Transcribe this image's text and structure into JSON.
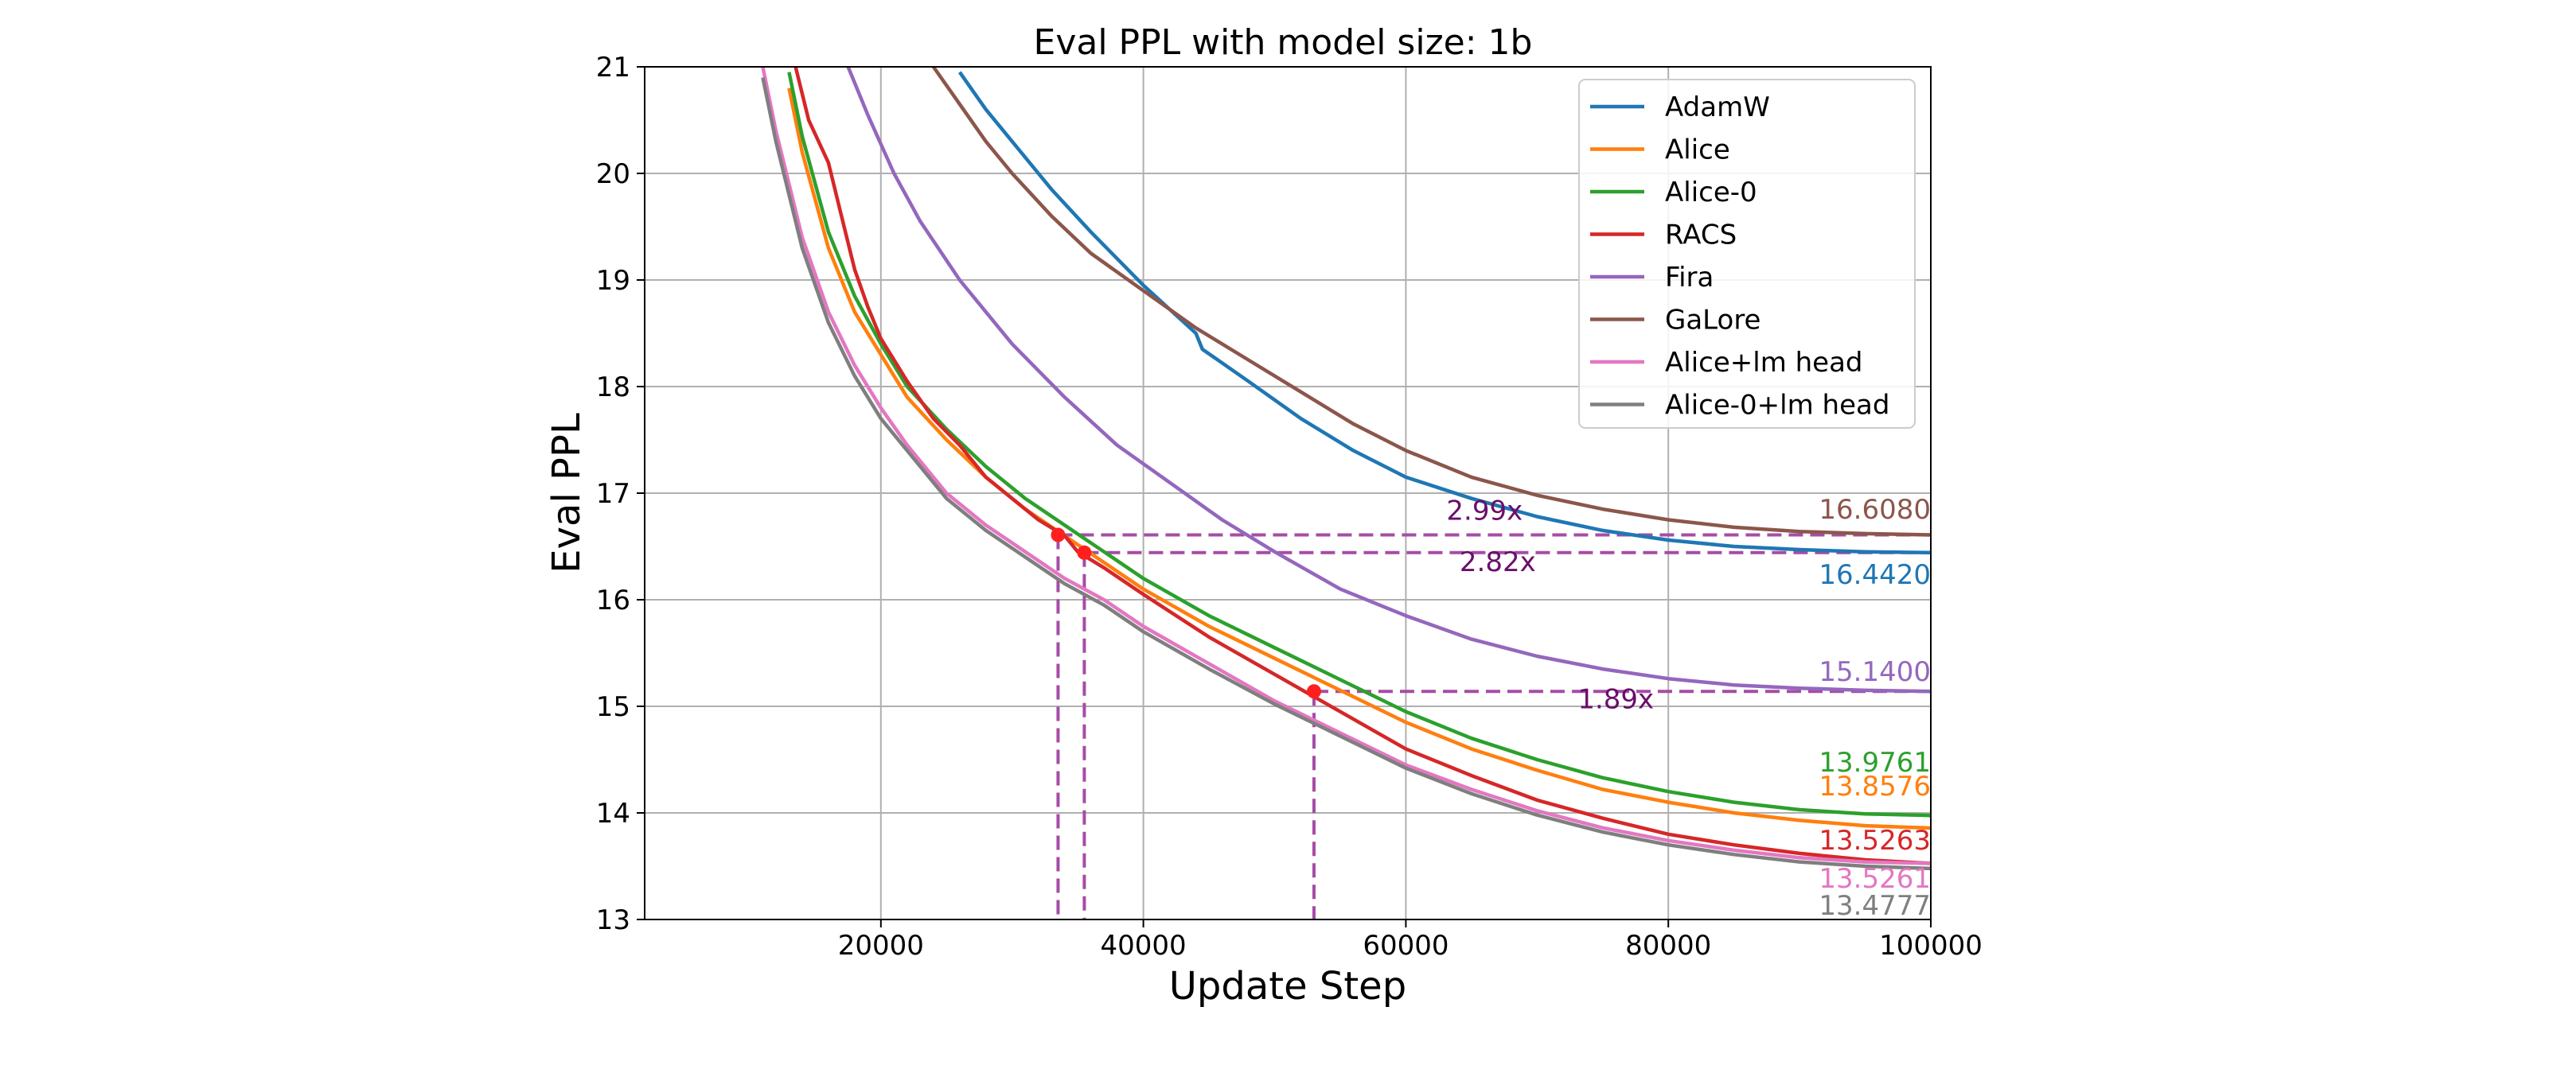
{
  "chart_data": {
    "type": "line",
    "title": "Eval PPL with model size: 1b",
    "xlabel": "Update Step",
    "ylabel": "Eval PPL",
    "xlim": [
      2000,
      100000
    ],
    "ylim": [
      13,
      21
    ],
    "xticks": [
      20000,
      40000,
      60000,
      80000,
      100000
    ],
    "yticks": [
      13,
      14,
      15,
      16,
      17,
      18,
      19,
      20,
      21
    ],
    "xtick_labels": [
      "20000",
      "40000",
      "60000",
      "80000",
      "100000"
    ],
    "ytick_labels": [
      "13",
      "14",
      "15",
      "16",
      "17",
      "18",
      "19",
      "20",
      "21"
    ],
    "grid": true,
    "legend_position": "top-right",
    "series": [
      {
        "name": "AdamW",
        "color": "#1f77b4",
        "final_label": "16.4420",
        "x": [
          26000,
          28000,
          30000,
          33000,
          36000,
          40000,
          44000,
          44500,
          48000,
          52000,
          56000,
          60000,
          65000,
          70000,
          75000,
          80000,
          85000,
          90000,
          95000,
          100000
        ],
        "y": [
          20.95,
          20.6,
          20.3,
          19.85,
          19.45,
          18.95,
          18.5,
          18.35,
          18.05,
          17.7,
          17.4,
          17.15,
          16.95,
          16.78,
          16.65,
          16.56,
          16.5,
          16.47,
          16.45,
          16.442
        ]
      },
      {
        "name": "Alice",
        "color": "#ff7f0e",
        "final_label": "13.8576",
        "x": [
          13000,
          14000,
          16000,
          18000,
          20000,
          22000,
          25000,
          28000,
          31000,
          34000,
          37000,
          40000,
          45000,
          50000,
          55000,
          60000,
          65000,
          70000,
          75000,
          80000,
          85000,
          90000,
          95000,
          100000
        ],
        "y": [
          20.8,
          20.2,
          19.3,
          18.7,
          18.3,
          17.9,
          17.5,
          17.15,
          16.85,
          16.6,
          16.35,
          16.1,
          15.75,
          15.45,
          15.15,
          14.85,
          14.6,
          14.4,
          14.22,
          14.1,
          14.0,
          13.93,
          13.88,
          13.858
        ]
      },
      {
        "name": "Alice-0",
        "color": "#2ca02c",
        "final_label": "13.9761",
        "x": [
          13000,
          14000,
          16000,
          18000,
          20000,
          22000,
          25000,
          28000,
          31000,
          34000,
          37000,
          40000,
          45000,
          50000,
          55000,
          60000,
          65000,
          70000,
          75000,
          80000,
          85000,
          90000,
          95000,
          100000
        ],
        "y": [
          20.95,
          20.35,
          19.45,
          18.85,
          18.4,
          18.0,
          17.6,
          17.25,
          16.95,
          16.7,
          16.45,
          16.2,
          15.85,
          15.55,
          15.25,
          14.95,
          14.7,
          14.5,
          14.33,
          14.2,
          14.1,
          14.03,
          13.99,
          13.976
        ]
      },
      {
        "name": "RACS",
        "color": "#d62728",
        "final_label": "13.5263",
        "x": [
          13500,
          14500,
          16000,
          17000,
          18000,
          19000,
          20000,
          22000,
          24000,
          26000,
          28000,
          30000,
          32000,
          34000,
          35000,
          37000,
          40000,
          45000,
          50000,
          55000,
          60000,
          65000,
          70000,
          75000,
          80000,
          85000,
          90000,
          95000,
          100000
        ],
        "y": [
          21.0,
          20.5,
          20.1,
          19.6,
          19.1,
          18.75,
          18.45,
          18.05,
          17.7,
          17.45,
          17.15,
          16.95,
          16.75,
          16.6,
          16.45,
          16.3,
          16.05,
          15.65,
          15.3,
          14.95,
          14.6,
          14.35,
          14.12,
          13.95,
          13.8,
          13.7,
          13.62,
          13.56,
          13.526
        ]
      },
      {
        "name": "Fira",
        "color": "#9467bd",
        "final_label": "15.1400",
        "x": [
          17500,
          19000,
          21000,
          23000,
          26000,
          30000,
          34000,
          38000,
          42000,
          46000,
          50000,
          55000,
          60000,
          65000,
          70000,
          75000,
          80000,
          85000,
          90000,
          95000,
          100000
        ],
        "y": [
          21.0,
          20.55,
          20.0,
          19.55,
          19.0,
          18.4,
          17.9,
          17.45,
          17.1,
          16.75,
          16.45,
          16.1,
          15.85,
          15.63,
          15.47,
          15.35,
          15.26,
          15.2,
          15.17,
          15.15,
          15.14
        ]
      },
      {
        "name": "GaLore",
        "color": "#8c564b",
        "final_label": "16.6080",
        "x": [
          24000,
          26000,
          28000,
          30000,
          33000,
          36000,
          40000,
          44000,
          48000,
          52000,
          56000,
          60000,
          65000,
          70000,
          75000,
          80000,
          85000,
          90000,
          95000,
          100000
        ],
        "y": [
          21.0,
          20.65,
          20.3,
          20.0,
          19.6,
          19.25,
          18.9,
          18.55,
          18.25,
          17.95,
          17.65,
          17.4,
          17.15,
          16.98,
          16.85,
          16.75,
          16.68,
          16.64,
          16.62,
          16.608
        ]
      },
      {
        "name": "Alice+lm head",
        "color": "#e377c2",
        "final_label": "13.5261",
        "x": [
          11000,
          12000,
          14000,
          16000,
          18000,
          20000,
          22000,
          25000,
          28000,
          31000,
          34000,
          37000,
          40000,
          45000,
          50000,
          55000,
          60000,
          65000,
          70000,
          75000,
          80000,
          85000,
          90000,
          95000,
          100000
        ],
        "y": [
          21.0,
          20.4,
          19.4,
          18.7,
          18.2,
          17.8,
          17.45,
          17.0,
          16.7,
          16.45,
          16.2,
          16.0,
          15.75,
          15.4,
          15.05,
          14.75,
          14.45,
          14.22,
          14.02,
          13.86,
          13.74,
          13.65,
          13.58,
          13.54,
          13.526
        ]
      },
      {
        "name": "Alice-0+lm head",
        "color": "#7f7f7f",
        "final_label": "13.4777",
        "x": [
          11000,
          12000,
          14000,
          16000,
          18000,
          20000,
          22000,
          25000,
          28000,
          31000,
          34000,
          37000,
          40000,
          45000,
          50000,
          55000,
          60000,
          65000,
          70000,
          75000,
          80000,
          85000,
          90000,
          95000,
          100000
        ],
        "y": [
          20.9,
          20.3,
          19.3,
          18.6,
          18.1,
          17.7,
          17.4,
          16.95,
          16.65,
          16.4,
          16.15,
          15.95,
          15.7,
          15.35,
          15.02,
          14.72,
          14.42,
          14.18,
          13.98,
          13.82,
          13.7,
          13.61,
          13.54,
          13.5,
          13.478
        ]
      }
    ],
    "annotations": [
      {
        "label": "2.99x",
        "color": "#6a0f6a",
        "line_color": "#a64ca6",
        "point_x": 33500,
        "point_y": 16.608,
        "label_x": 66000,
        "label_y": 16.75
      },
      {
        "label": "2.82x",
        "color": "#6a0f6a",
        "line_color": "#a64ca6",
        "point_x": 35500,
        "point_y": 16.442,
        "label_x": 67000,
        "label_y": 16.27
      },
      {
        "label": "1.89x",
        "color": "#6a0f6a",
        "line_color": "#a64ca6",
        "point_x": 53000,
        "point_y": 15.14,
        "label_x": 76000,
        "label_y": 14.98
      }
    ],
    "marker_color": "#ff1f1f"
  }
}
